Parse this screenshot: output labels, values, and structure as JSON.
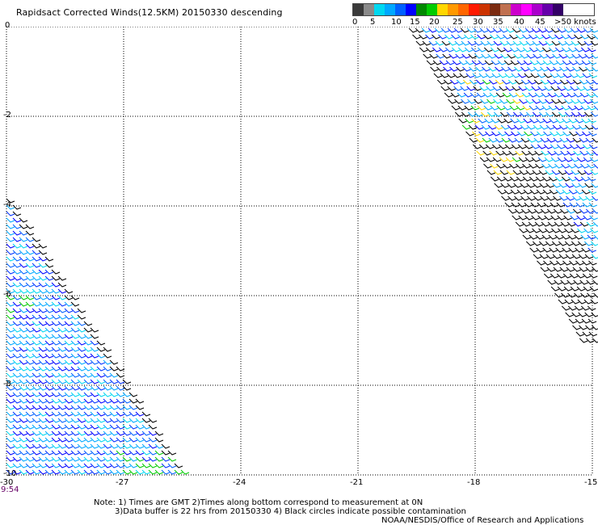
{
  "header": {
    "title": "Rapidsact Corrected Winds(12.5KM) 20150330 descending"
  },
  "legend": {
    "colors": [
      "#3a3a3a",
      "#8a8a8a",
      "#00d8f0",
      "#00a8ff",
      "#0060ff",
      "#0000ff",
      "#008800",
      "#00cc00",
      "#ffd700",
      "#ff9900",
      "#ff6600",
      "#ff1a00",
      "#cc3300",
      "#7a2a10",
      "#c07050",
      "#cc00cc",
      "#ff00ff",
      "#aa00cc",
      "#6600aa",
      "#330066"
    ],
    "labels": [
      "0",
      "5",
      "10",
      "15",
      "20",
      "25",
      "30",
      "35",
      "40",
      "45",
      ">50 knots"
    ]
  },
  "axes": {
    "x_ticks": [
      "-30",
      "-27",
      "-24",
      "-21",
      "-18",
      "-15"
    ],
    "y_ticks": [
      "0",
      "-2",
      "-4",
      "-6",
      "-8",
      "-10"
    ]
  },
  "time_label": "9:54",
  "notes": {
    "line1": "Note: 1) Times are GMT 2)Times along bottom correspond to measurement at 0N",
    "line2": "3)Data buffer is 22 hrs from 20150330 4) Black circles indicate possible contamination",
    "line3": "NOAA/NESDIS/Office of Research and Applications"
  }
}
